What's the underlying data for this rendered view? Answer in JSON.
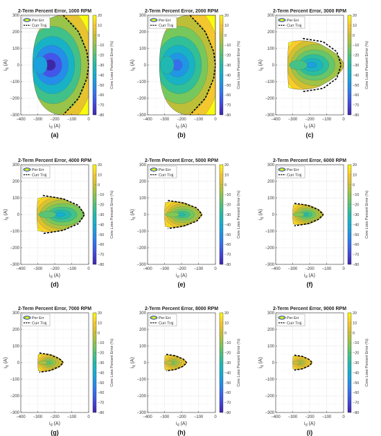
{
  "shared": {
    "xlabel": "i_d (A)",
    "ylabel": "i_q (A)",
    "colorbar_label": "Core Loss Percent Error (%)",
    "legend": [
      "Per Err",
      "Curr Traj"
    ],
    "legend_placement": "top-left",
    "xlim": [
      -400,
      0
    ],
    "ylim": [
      -300,
      300
    ],
    "xticks": [
      -400,
      -300,
      -200,
      -100,
      0
    ],
    "yticks": [
      -300,
      -200,
      -100,
      0,
      100,
      200,
      300
    ],
    "colorbar_range": [
      -80,
      20
    ],
    "colorbar_ticks": [
      20,
      10,
      0,
      -10,
      -20,
      -30,
      -40,
      -50,
      -60,
      -70,
      -80
    ],
    "grid": true
  },
  "chart_data": [
    {
      "type": "contour",
      "panel": "(a)",
      "title": "2-Term Percent Error, 1000 RPM",
      "rpm": 1000,
      "region": {
        "id_min": -330,
        "id_max": 0,
        "iq_max": 300,
        "shape": "semicircle"
      },
      "trajectory": [
        [
          -150,
          300
        ],
        [
          -60,
          200
        ],
        [
          -10,
          80
        ],
        [
          0,
          0
        ],
        [
          -10,
          -80
        ],
        [
          -60,
          -200
        ],
        [
          -150,
          -300
        ]
      ],
      "min_error_point": [
        -200,
        0
      ],
      "error_range": [
        -80,
        20
      ]
    },
    {
      "type": "contour",
      "panel": "(b)",
      "title": "2-Term Percent Error, 2000 RPM",
      "rpm": 2000,
      "region": {
        "id_min": -330,
        "id_max": 0,
        "iq_max": 300,
        "shape": "semicircle"
      },
      "trajectory": [
        [
          -150,
          300
        ],
        [
          -60,
          200
        ],
        [
          -10,
          80
        ],
        [
          0,
          0
        ],
        [
          -10,
          -80
        ],
        [
          -60,
          -200
        ],
        [
          -150,
          -300
        ]
      ],
      "min_error_point": [
        -200,
        0
      ],
      "error_range": [
        -60,
        20
      ]
    },
    {
      "type": "contour",
      "panel": "(c)",
      "title": "2-Term Percent Error, 3000 RPM",
      "rpm": 3000,
      "region": {
        "id_min": -330,
        "id_max": 0,
        "iq_max": 160,
        "shape": "lens"
      },
      "trajectory": [
        [
          -240,
          160
        ],
        [
          -120,
          140
        ],
        [
          -40,
          80
        ],
        [
          -15,
          0
        ],
        [
          -40,
          -80
        ],
        [
          -120,
          -140
        ],
        [
          -240,
          -160
        ]
      ],
      "min_error_point": [
        -150,
        0
      ],
      "error_range": [
        -45,
        20
      ]
    },
    {
      "type": "contour",
      "panel": "(d)",
      "title": "2-Term Percent Error, 4000 RPM",
      "rpm": 4000,
      "region": {
        "id_min": -305,
        "id_max": -25,
        "iq_max": 115,
        "shape": "lens"
      },
      "trajectory": [
        [
          -270,
          115
        ],
        [
          -150,
          95
        ],
        [
          -60,
          55
        ],
        [
          -25,
          0
        ],
        [
          -60,
          -55
        ],
        [
          -150,
          -95
        ],
        [
          -270,
          -115
        ]
      ],
      "min_error_point": [
        -130,
        0
      ],
      "error_range": [
        -40,
        20
      ]
    },
    {
      "type": "contour",
      "panel": "(e)",
      "title": "2-Term Percent Error, 5000 RPM",
      "rpm": 5000,
      "region": {
        "id_min": -300,
        "id_max": -80,
        "iq_max": 85,
        "shape": "lens"
      },
      "trajectory": [
        [
          -280,
          85
        ],
        [
          -190,
          70
        ],
        [
          -110,
          40
        ],
        [
          -80,
          0
        ],
        [
          -110,
          -40
        ],
        [
          -190,
          -70
        ],
        [
          -280,
          -85
        ]
      ],
      "min_error_point": [
        -170,
        0
      ],
      "error_range": [
        -30,
        20
      ]
    },
    {
      "type": "contour",
      "panel": "(f)",
      "title": "2-Term Percent Error, 6000 RPM",
      "rpm": 6000,
      "region": {
        "id_min": -300,
        "id_max": -120,
        "iq_max": 68,
        "shape": "lens"
      },
      "trajectory": [
        [
          -290,
          68
        ],
        [
          -210,
          55
        ],
        [
          -150,
          30
        ],
        [
          -120,
          0
        ],
        [
          -150,
          -30
        ],
        [
          -210,
          -55
        ],
        [
          -290,
          -68
        ]
      ],
      "min_error_point": [
        -200,
        0
      ],
      "error_range": [
        -30,
        20
      ]
    },
    {
      "type": "contour",
      "panel": "(g)",
      "title": "2-Term Percent Error, 7000 RPM",
      "rpm": 7000,
      "region": {
        "id_min": -300,
        "id_max": -150,
        "iq_max": 58,
        "shape": "lens"
      },
      "trajectory": [
        [
          -290,
          58
        ],
        [
          -230,
          48
        ],
        [
          -175,
          25
        ],
        [
          -150,
          0
        ],
        [
          -175,
          -25
        ],
        [
          -230,
          -48
        ],
        [
          -290,
          -58
        ]
      ],
      "min_error_point": [
        -220,
        0
      ],
      "error_range": [
        -20,
        20
      ]
    },
    {
      "type": "contour",
      "panel": "(h)",
      "title": "2-Term Percent Error, 8000 RPM",
      "rpm": 8000,
      "region": {
        "id_min": -300,
        "id_max": -170,
        "iq_max": 50,
        "shape": "lens"
      },
      "trajectory": [
        [
          -290,
          50
        ],
        [
          -240,
          42
        ],
        [
          -190,
          22
        ],
        [
          -170,
          0
        ],
        [
          -190,
          -22
        ],
        [
          -240,
          -42
        ],
        [
          -290,
          -50
        ]
      ],
      "min_error_point": [
        -235,
        0
      ],
      "error_range": [
        -15,
        20
      ]
    },
    {
      "type": "contour",
      "panel": "(i)",
      "title": "2-Term Percent Error, 9000 RPM",
      "rpm": 9000,
      "region": {
        "id_min": -300,
        "id_max": -185,
        "iq_max": 45,
        "shape": "lens"
      },
      "trajectory": [
        [
          -290,
          45
        ],
        [
          -245,
          38
        ],
        [
          -205,
          20
        ],
        [
          -185,
          0
        ],
        [
          -205,
          -20
        ],
        [
          -245,
          -38
        ],
        [
          -290,
          -45
        ]
      ],
      "min_error_point": [
        -245,
        0
      ],
      "error_range": [
        -10,
        20
      ]
    }
  ]
}
